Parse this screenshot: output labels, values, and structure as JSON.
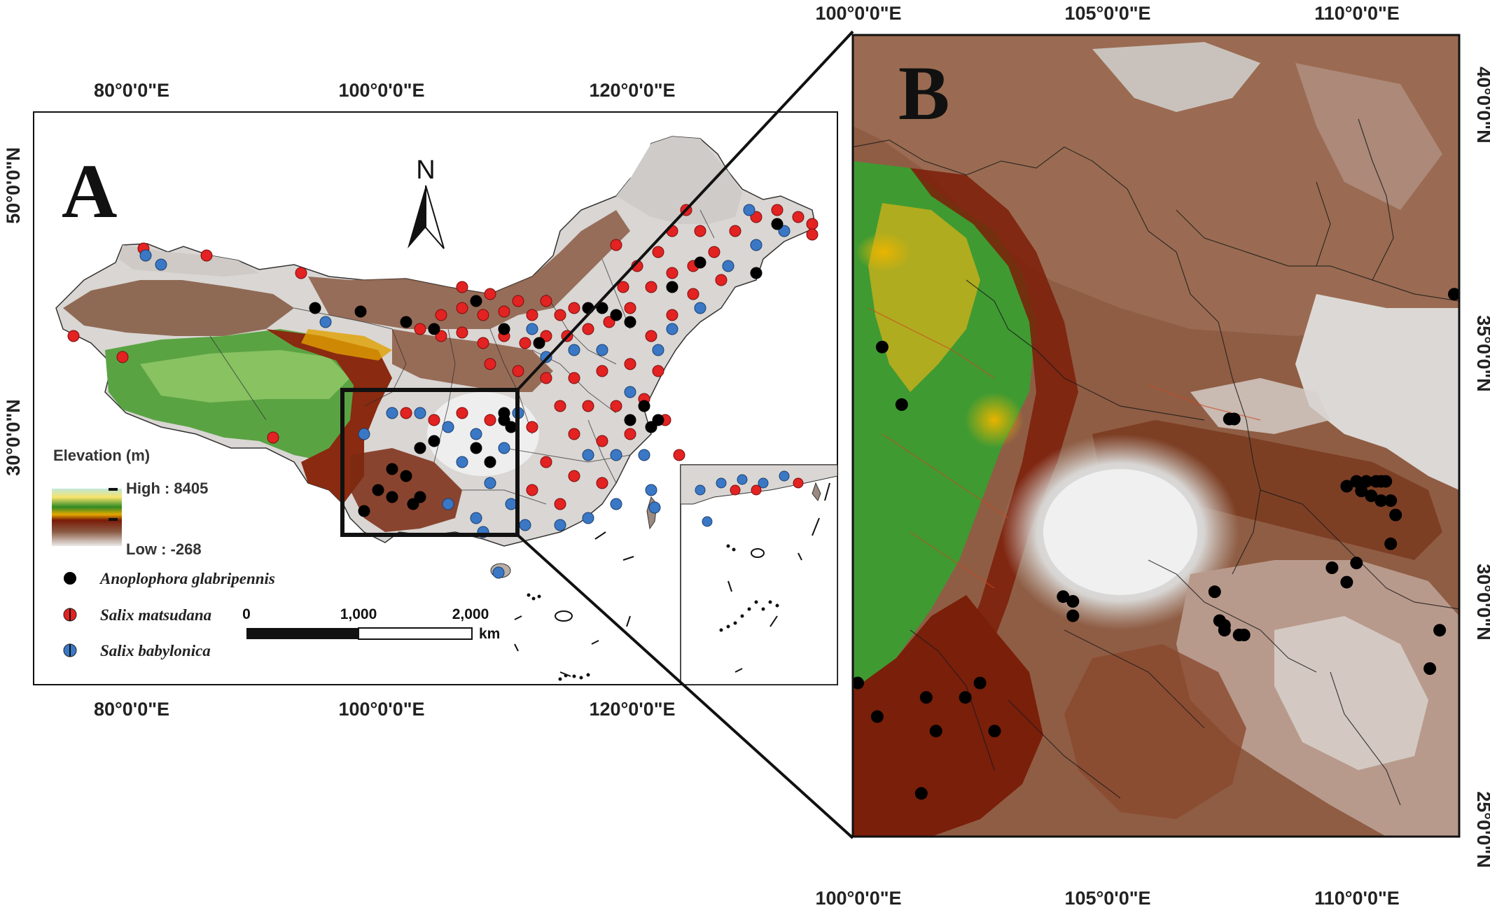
{
  "panel_a": {
    "label": "A",
    "top_ticks": [
      "80°0'0\"E",
      "100°0'0\"E",
      "120°0'0\"E"
    ],
    "bottom_ticks": [
      "80°0'0\"E",
      "100°0'0\"E",
      "120°0'0\"E"
    ],
    "left_ticks": [
      "50°0'0\"N",
      "30°0'0\"N"
    ],
    "north_arrow": "N",
    "legend": {
      "title": "Elevation (m)",
      "high": "High : 8405",
      "low": "Low : -268",
      "colors": [
        "#bfe8d9",
        "#f7e36b",
        "#2f8a25",
        "#e6a800",
        "#7a1b08",
        "#8a5a43",
        "#d9d2cc"
      ],
      "species": [
        {
          "name": "Anoplophora glabripennis",
          "color": "#000000"
        },
        {
          "name": "Salix matsudana",
          "color": "#e32222"
        },
        {
          "name": "Salix babylonica",
          "color": "#3a78c6"
        }
      ]
    },
    "scale_bar": {
      "labels": [
        "0",
        "1,000",
        "2,000"
      ],
      "unit": "km"
    }
  },
  "panel_b": {
    "label": "B",
    "top_ticks": [
      "100°0'0\"E",
      "105°0'0\"E",
      "110°0'0\"E"
    ],
    "bottom_ticks": [
      "100°0'0\"E",
      "105°0'0\"E",
      "110°0'0\"E"
    ],
    "right_ticks": [
      "40°0'0\"N",
      "35°0'0\"N",
      "30°0'0\"N",
      "25°0'0\"N"
    ]
  },
  "occurrences_b": [
    [
      100.4,
      34.4
    ],
    [
      100.8,
      33.2
    ],
    [
      107.5,
      32.9
    ],
    [
      107.6,
      32.9
    ],
    [
      112.1,
      35.5
    ],
    [
      109.9,
      31.5
    ],
    [
      110.1,
      31.6
    ],
    [
      110.3,
      31.6
    ],
    [
      110.5,
      31.6
    ],
    [
      110.6,
      31.6
    ],
    [
      110.7,
      31.6
    ],
    [
      110.2,
      31.4
    ],
    [
      110.4,
      31.3
    ],
    [
      110.6,
      31.2
    ],
    [
      110.8,
      31.2
    ],
    [
      110.9,
      30.9
    ],
    [
      110.8,
      30.3
    ],
    [
      110.1,
      29.9
    ],
    [
      109.6,
      29.8
    ],
    [
      109.9,
      29.5
    ],
    [
      104.1,
      29.2
    ],
    [
      104.3,
      29.1
    ],
    [
      104.3,
      28.8
    ],
    [
      107.2,
      29.3
    ],
    [
      107.3,
      28.7
    ],
    [
      107.4,
      28.6
    ],
    [
      107.4,
      28.5
    ],
    [
      107.7,
      28.4
    ],
    [
      107.8,
      28.4
    ],
    [
      111.8,
      28.5
    ],
    [
      111.6,
      27.7
    ],
    [
      99.9,
      27.4
    ],
    [
      102.4,
      27.4
    ],
    [
      101.3,
      27.1
    ],
    [
      102.1,
      27.1
    ],
    [
      100.3,
      26.7
    ],
    [
      101.5,
      26.4
    ],
    [
      102.7,
      26.4
    ],
    [
      101.2,
      25.1
    ]
  ]
}
